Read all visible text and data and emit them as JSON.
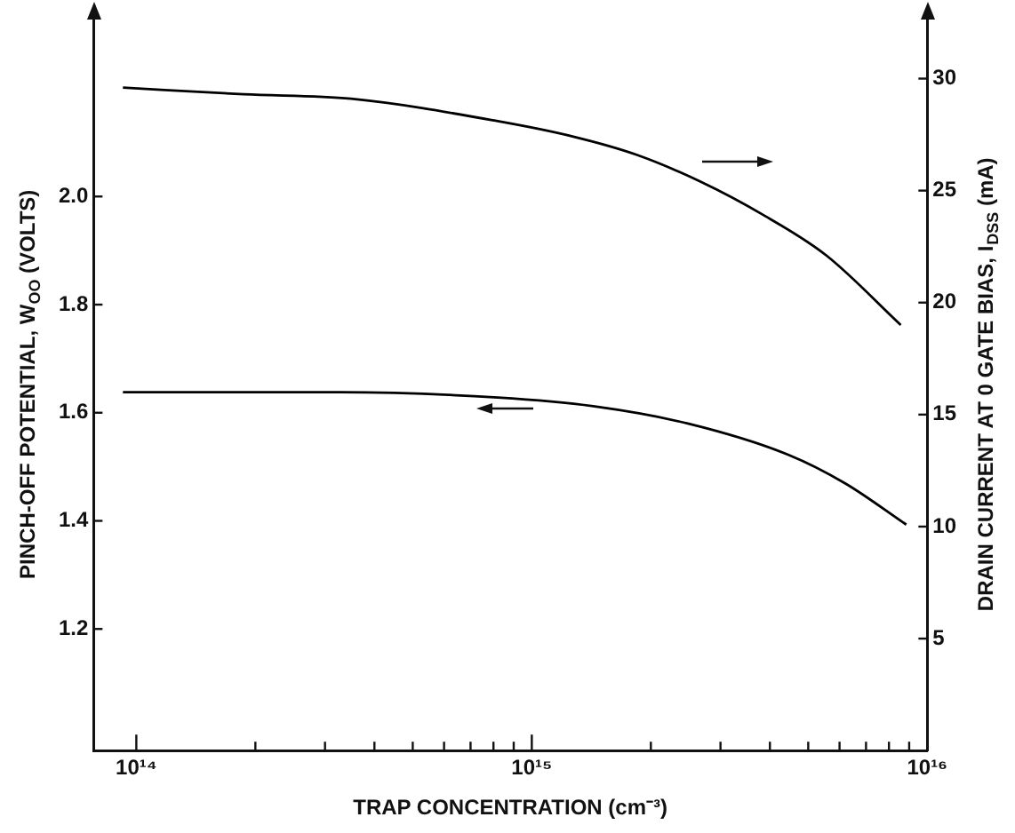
{
  "chart_data": {
    "type": "line",
    "xlabel": "TRAP CONCENTRATION (cm⁻³)",
    "ylabel": "PINCH-OFF POTENTIAL, W$_{OO}$ (VOLTS)",
    "y2label": "DRAIN CURRENT AT 0 GATE BIAS, I$_{DSS}$ (mA)",
    "log": "x",
    "xlim": [
      78000000000000.0,
      1e+16
    ],
    "xticks": [
      {
        "value": 100000000000000.0,
        "label": "10¹⁴"
      },
      {
        "value": 200000000000000.0,
        "label": null
      },
      {
        "value": 300000000000000.0,
        "label": null
      },
      {
        "value": 400000000000000.0,
        "label": null
      },
      {
        "value": 500000000000000.0,
        "label": null
      },
      {
        "value": 600000000000000.0,
        "label": null
      },
      {
        "value": 700000000000000.0,
        "label": null
      },
      {
        "value": 800000000000000.0,
        "label": null
      },
      {
        "value": 900000000000000.0,
        "label": null
      },
      {
        "value": 1000000000000000.0,
        "label": "10¹⁵"
      },
      {
        "value": 2000000000000000.0,
        "label": null
      },
      {
        "value": 3000000000000000.0,
        "label": null
      },
      {
        "value": 4000000000000000.0,
        "label": null
      },
      {
        "value": 5000000000000000.0,
        "label": null
      },
      {
        "value": 6000000000000000.0,
        "label": null
      },
      {
        "value": 7000000000000000.0,
        "label": null
      },
      {
        "value": 8000000000000000.0,
        "label": null
      },
      {
        "value": 9000000000000000.0,
        "label": null
      },
      {
        "value": 1e+16,
        "label": "10¹⁶"
      }
    ],
    "ylim": [
      0.975,
      2.33
    ],
    "yticks": [
      {
        "value": 1.2,
        "label": "1.2"
      },
      {
        "value": 1.4,
        "label": "1.4"
      },
      {
        "value": 1.6,
        "label": "1.6"
      },
      {
        "value": 1.8,
        "label": "1.8"
      },
      {
        "value": 2.0,
        "label": "2.0"
      }
    ],
    "y2lim": [
      0,
      32.7
    ],
    "y2ticks": [
      5,
      10,
      15,
      20,
      25,
      30
    ],
    "grid": false,
    "legend": false,
    "marker": "none",
    "line_style": "solid",
    "series": [
      {
        "color": "#000000",
        "axis": "y2",
        "x": [
          92500000000000.0,
          187000000000000.0,
          349000000000000.0,
          820000000000000.0,
          1280000000000000.0,
          1840000000000000.0,
          2670000000000000.0,
          3860000000000000.0,
          5560000000000000.0,
          8570000000000000.0
        ],
        "values": [
          29.6,
          29.3,
          29.1,
          28.1,
          27.4,
          26.6,
          25.4,
          23.9,
          22.1,
          19.0
        ]
      },
      {
        "color": "#000000",
        "axis": "y",
        "x": [
          92500000000000.0,
          327000000000000.0,
          820000000000000.0,
          1430000000000000.0,
          2480000000000000.0,
          4460000000000000.0,
          6210000000000000.0,
          8850000000000000.0
        ],
        "values": [
          1.638,
          1.638,
          1.628,
          1.612,
          1.58,
          1.522,
          1.469,
          1.393
        ]
      }
    ]
  }
}
